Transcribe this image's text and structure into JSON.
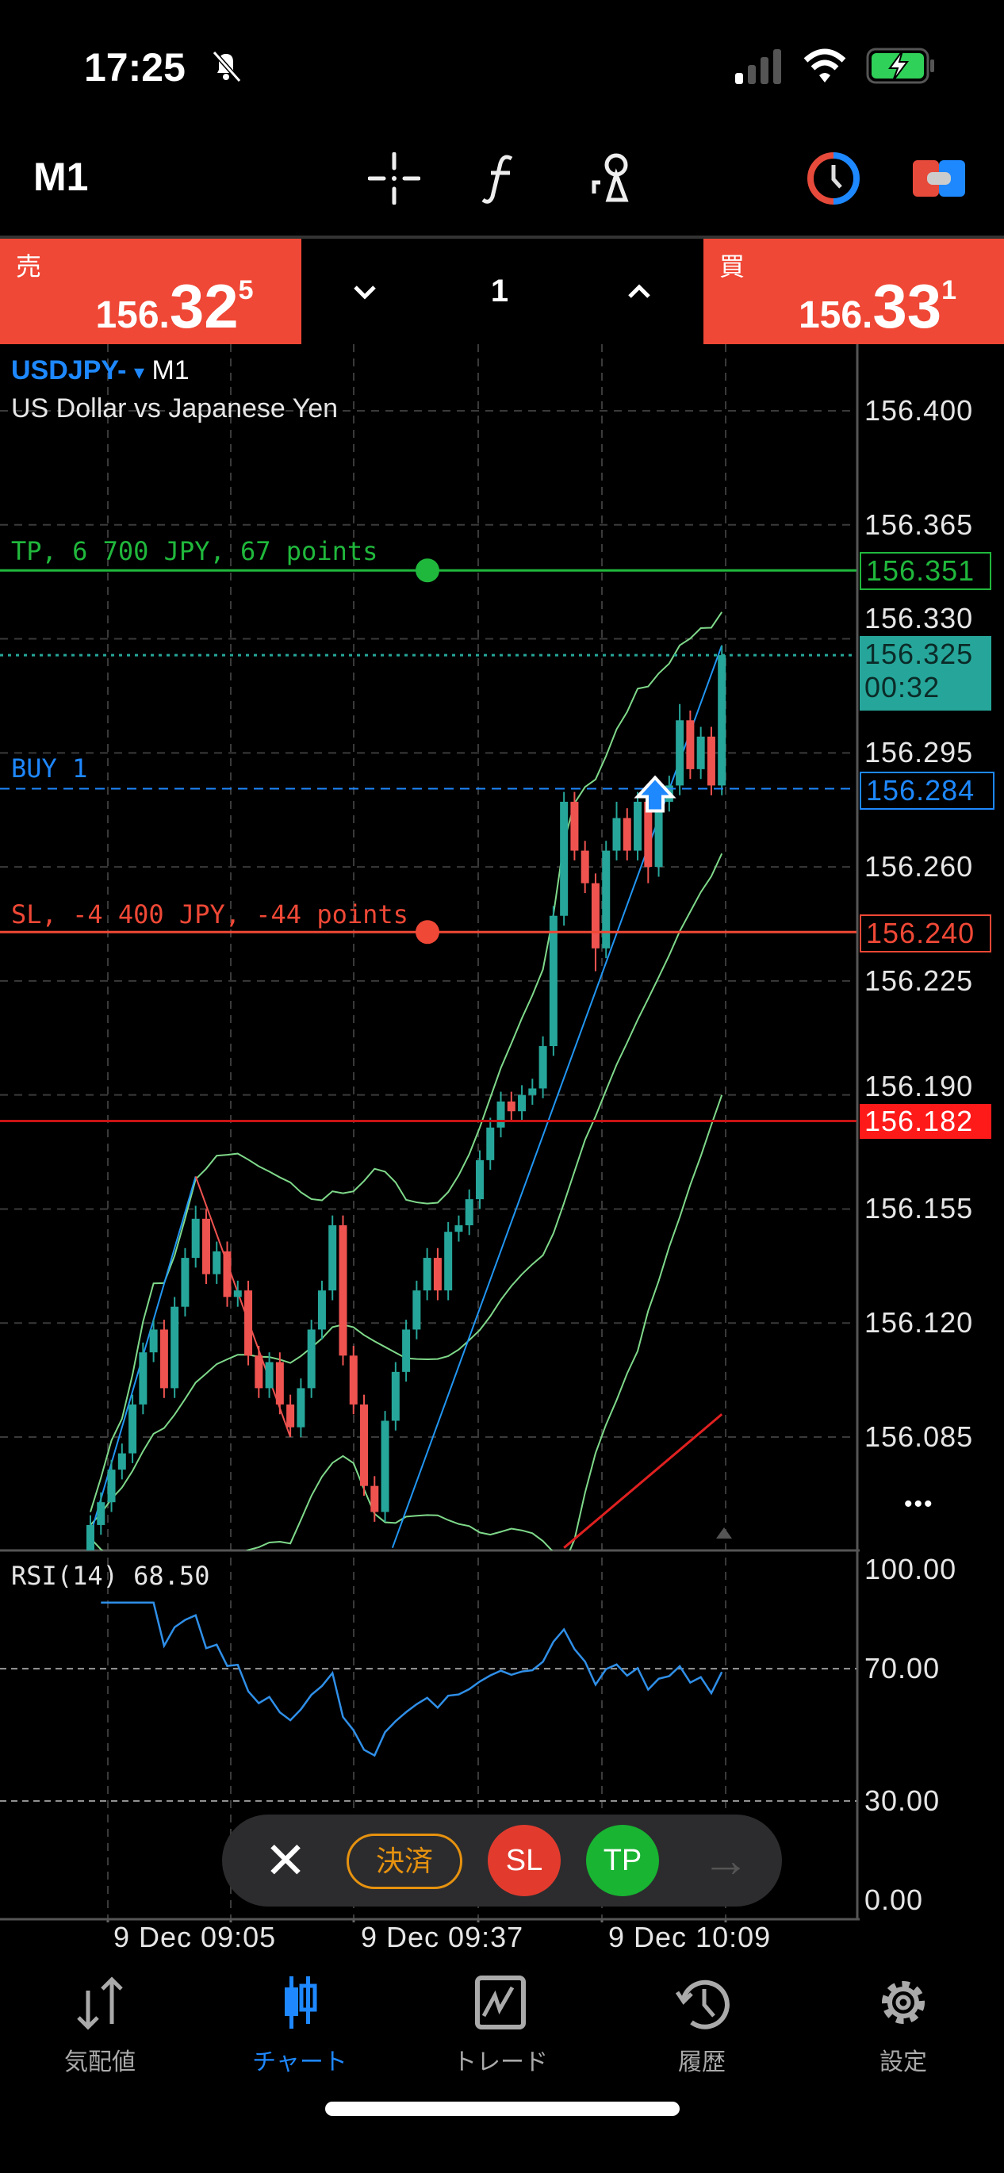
{
  "status_bar": {
    "time": "17:25",
    "icons": [
      "bell-slash-icon",
      "signal-icon",
      "wifi-icon",
      "battery-charging-icon"
    ]
  },
  "toolbar": {
    "timeframe": "M1",
    "icons": [
      "crosshair-icon",
      "function-icon",
      "objects-icon",
      "one-click-trading-icon",
      "trade-toggle-icon"
    ]
  },
  "price_bar": {
    "sell_label": "売",
    "sell_prefix": "156.",
    "sell_big": "32",
    "sell_sup": "5",
    "buy_label": "買",
    "buy_prefix": "156.",
    "buy_big": "33",
    "buy_sup": "1",
    "volume": "1",
    "down_symbol": "⌄",
    "up_symbol": "^"
  },
  "chart_header": {
    "symbol": "USDJPY-",
    "symbol_arrow": "▾",
    "timeframe": "M1",
    "description": "US Dollar vs Japanese Yen"
  },
  "price_axis": {
    "labels": [
      "156.400",
      "156.365",
      "156.330",
      "156.295",
      "156.260",
      "156.225",
      "156.190",
      "156.155",
      "156.120",
      "156.085"
    ]
  },
  "levels": {
    "tp": {
      "text": "TP, 6 700 JPY, 67 points",
      "price": 156.351,
      "label": "156.351",
      "color": "#20b83c"
    },
    "current": {
      "price": 156.325,
      "label": "156.325",
      "timer": "00:32",
      "color": "#26a69a"
    },
    "buy": {
      "text": "BUY 1",
      "price": 156.284,
      "label": "156.284",
      "color": "#1e88ff"
    },
    "sl": {
      "text": "SL, -4 400 JPY, -44 points",
      "price": 156.24,
      "label": "156.240",
      "color": "#ef4836"
    },
    "alert": {
      "price": 156.182,
      "label": "156.182",
      "color": "#ff1a1a"
    }
  },
  "chart_data": {
    "type": "candlestick",
    "y_range": [
      156.05,
      156.42
    ],
    "bull_color": "#26a69a",
    "bear_color": "#ef5350",
    "ohlc": [
      [
        156.05,
        156.061,
        156.047,
        156.058
      ],
      [
        156.058,
        156.068,
        156.055,
        156.065
      ],
      [
        156.065,
        156.078,
        156.062,
        156.075
      ],
      [
        156.075,
        156.083,
        156.072,
        156.08
      ],
      [
        156.08,
        156.098,
        156.077,
        156.095
      ],
      [
        156.095,
        156.114,
        156.092,
        156.111
      ],
      [
        156.111,
        156.121,
        156.108,
        156.118
      ],
      [
        156.118,
        156.121,
        156.097,
        156.1
      ],
      [
        156.1,
        156.128,
        156.097,
        156.125
      ],
      [
        156.125,
        156.143,
        156.122,
        156.14
      ],
      [
        156.14,
        156.156,
        156.137,
        156.152
      ],
      [
        156.152,
        156.155,
        156.132,
        156.135
      ],
      [
        156.135,
        156.145,
        156.132,
        156.142
      ],
      [
        156.142,
        156.145,
        156.125,
        156.128
      ],
      [
        156.128,
        156.133,
        156.125,
        156.13
      ],
      [
        156.13,
        156.133,
        156.107,
        156.11
      ],
      [
        156.11,
        156.113,
        156.097,
        156.1
      ],
      [
        156.1,
        156.111,
        156.097,
        156.108
      ],
      [
        156.108,
        156.111,
        156.092,
        156.095
      ],
      [
        156.095,
        156.098,
        156.085,
        156.088
      ],
      [
        156.088,
        156.103,
        156.085,
        156.1
      ],
      [
        156.1,
        156.121,
        156.097,
        156.118
      ],
      [
        156.118,
        156.133,
        156.115,
        156.13
      ],
      [
        156.13,
        156.153,
        156.127,
        156.15
      ],
      [
        156.15,
        156.153,
        156.107,
        156.11
      ],
      [
        156.11,
        156.113,
        156.092,
        156.095
      ],
      [
        156.095,
        156.098,
        156.067,
        156.07
      ],
      [
        156.07,
        156.073,
        156.059,
        156.062
      ],
      [
        156.062,
        156.093,
        156.059,
        156.09
      ],
      [
        156.09,
        156.108,
        156.087,
        156.105
      ],
      [
        156.105,
        156.121,
        156.102,
        156.118
      ],
      [
        156.118,
        156.133,
        156.115,
        156.13
      ],
      [
        156.13,
        156.143,
        156.127,
        156.14
      ],
      [
        156.14,
        156.143,
        156.127,
        156.13
      ],
      [
        156.13,
        156.151,
        156.127,
        156.148
      ],
      [
        156.148,
        156.153,
        156.145,
        156.15
      ],
      [
        156.15,
        156.161,
        156.147,
        156.158
      ],
      [
        156.158,
        156.173,
        156.155,
        156.17
      ],
      [
        156.17,
        156.183,
        156.167,
        156.18
      ],
      [
        156.18,
        156.191,
        156.177,
        156.188
      ],
      [
        156.188,
        156.191,
        156.182,
        156.185
      ],
      [
        156.185,
        156.193,
        156.182,
        156.19
      ],
      [
        156.19,
        156.195,
        156.187,
        156.192
      ],
      [
        156.192,
        156.208,
        156.189,
        156.205
      ],
      [
        156.205,
        156.248,
        156.202,
        156.245
      ],
      [
        156.245,
        156.283,
        156.242,
        156.28
      ],
      [
        156.28,
        156.283,
        156.262,
        156.265
      ],
      [
        156.265,
        156.268,
        156.252,
        156.255
      ],
      [
        156.255,
        156.258,
        156.228,
        156.235
      ],
      [
        156.235,
        156.268,
        156.232,
        156.265
      ],
      [
        156.265,
        156.28,
        156.262,
        156.275
      ],
      [
        156.275,
        156.278,
        156.262,
        156.265
      ],
      [
        156.265,
        156.283,
        156.262,
        156.28
      ],
      [
        156.28,
        156.283,
        156.255,
        156.26
      ],
      [
        156.26,
        156.283,
        156.257,
        156.28
      ],
      [
        156.28,
        156.288,
        156.277,
        156.285
      ],
      [
        156.285,
        156.31,
        156.282,
        156.305
      ],
      [
        156.305,
        156.308,
        156.287,
        156.29
      ],
      [
        156.29,
        156.303,
        156.287,
        156.3
      ],
      [
        156.3,
        156.303,
        156.282,
        156.285
      ],
      [
        156.285,
        156.328,
        156.282,
        156.325
      ]
    ],
    "indicators": {
      "bollinger": {
        "period": 20,
        "deviation": 2,
        "color": "#7fd98a"
      }
    },
    "drawings": [
      {
        "type": "trendline",
        "color": "#2196f3",
        "from": [
          0,
          156.055
        ],
        "to": [
          10,
          156.165
        ]
      },
      {
        "type": "trendline",
        "color": "#ef5350",
        "from": [
          10,
          156.165
        ],
        "to": [
          19,
          156.085
        ]
      },
      {
        "type": "trendline",
        "color": "#2196f3",
        "from": [
          28.7,
          156.051
        ],
        "to": [
          60,
          156.328
        ]
      },
      {
        "type": "ma",
        "color": "#e02020",
        "from": [
          45,
          156.051
        ],
        "to": [
          60,
          156.092
        ]
      }
    ],
    "time_labels": [
      "9 Dec 09:05",
      "9 Dec 09:37",
      "9 Dec 10:09"
    ]
  },
  "rsi": {
    "label": "RSI(14) 68.50",
    "period": 14,
    "color": "#2f8fe8",
    "levels": [
      70,
      30
    ],
    "axis_labels": [
      "100.00",
      "70.00",
      "30.00",
      "0.00"
    ]
  },
  "more_symbol": "•••",
  "order_pill": {
    "close_symbol": "✕",
    "settle_label": "決済",
    "sl_label": "SL",
    "tp_label": "TP",
    "arrow_symbol": "→"
  },
  "tabs": [
    {
      "label": "気配値",
      "icon": "quotes-icon",
      "active": false
    },
    {
      "label": "チャート",
      "icon": "chart-icon",
      "active": true
    },
    {
      "label": "トレード",
      "icon": "trade-icon",
      "active": false
    },
    {
      "label": "履歴",
      "icon": "history-icon",
      "active": false
    },
    {
      "label": "設定",
      "icon": "settings-icon",
      "active": false
    }
  ]
}
